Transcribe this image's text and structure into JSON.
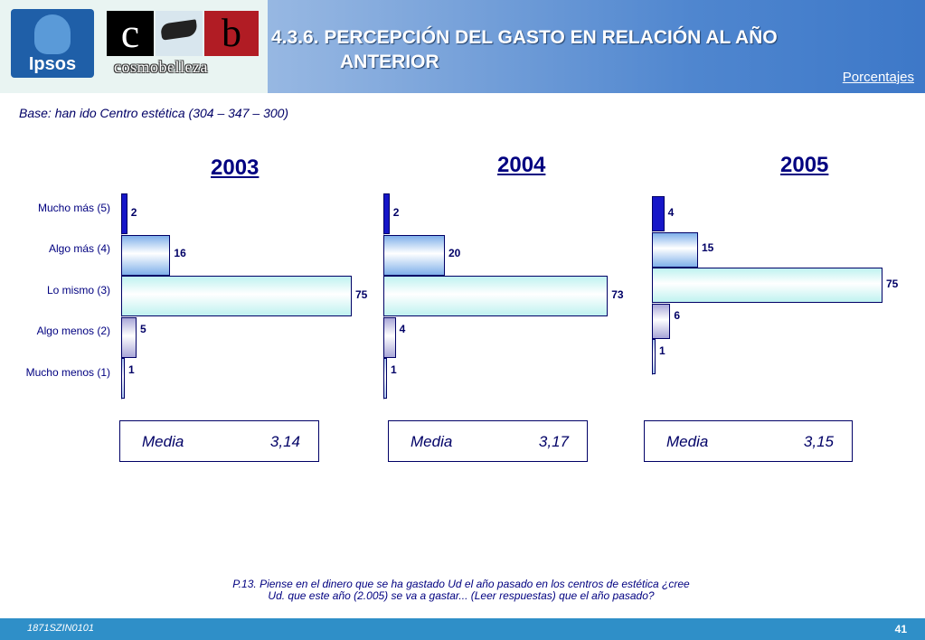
{
  "header": {
    "title_line1": "4.3.6. PERCEPCIÓN DEL GASTO EN RELACIÓN AL AÑO",
    "title_line2": "ANTERIOR",
    "units": "Porcentajes",
    "logo_ipsos": "Ipsos",
    "logo_c": "c",
    "logo_b": "b",
    "logo_cosmo": "cosmobelleza"
  },
  "base_text": "Base: han ido Centro estética   (304 – 347 – 300)",
  "question": {
    "line1": "P.13. Piense en el dinero que se ha gastado Ud el año pasado en los centros de estética ¿cree",
    "line2": "Ud. que este año (2.005) se va a gastar... (Leer respuestas) que el año pasado?"
  },
  "footer": {
    "code": "1871SZIN0101",
    "page": "41"
  },
  "colors": [
    "#1616c8",
    "#7fb0ea",
    "#bff2f0",
    "#a8a6d8",
    "#a9c6f0"
  ],
  "chart_data": [
    {
      "type": "bar",
      "title": "2003",
      "categories": [
        "Mucho más (5)",
        "Algo más (4)",
        "Lo mismo (3)",
        "Algo menos (2)",
        "Mucho menos (1)"
      ],
      "values": [
        2,
        16,
        75,
        5,
        1
      ],
      "mean_label": "Media",
      "mean_value": "3,14"
    },
    {
      "type": "bar",
      "title": "2004",
      "categories": [
        "Mucho más (5)",
        "Algo más (4)",
        "Lo mismo (3)",
        "Algo menos (2)",
        "Mucho menos (1)"
      ],
      "values": [
        2,
        20,
        73,
        4,
        1
      ],
      "mean_label": "Media",
      "mean_value": "3,17"
    },
    {
      "type": "bar",
      "title": "2005",
      "categories": [
        "Mucho más (5)",
        "Algo más (4)",
        "Lo mismo (3)",
        "Algo menos (2)",
        "Mucho menos (1)"
      ],
      "values": [
        4,
        15,
        75,
        6,
        1
      ],
      "mean_label": "Media",
      "mean_value": "3,15"
    }
  ]
}
